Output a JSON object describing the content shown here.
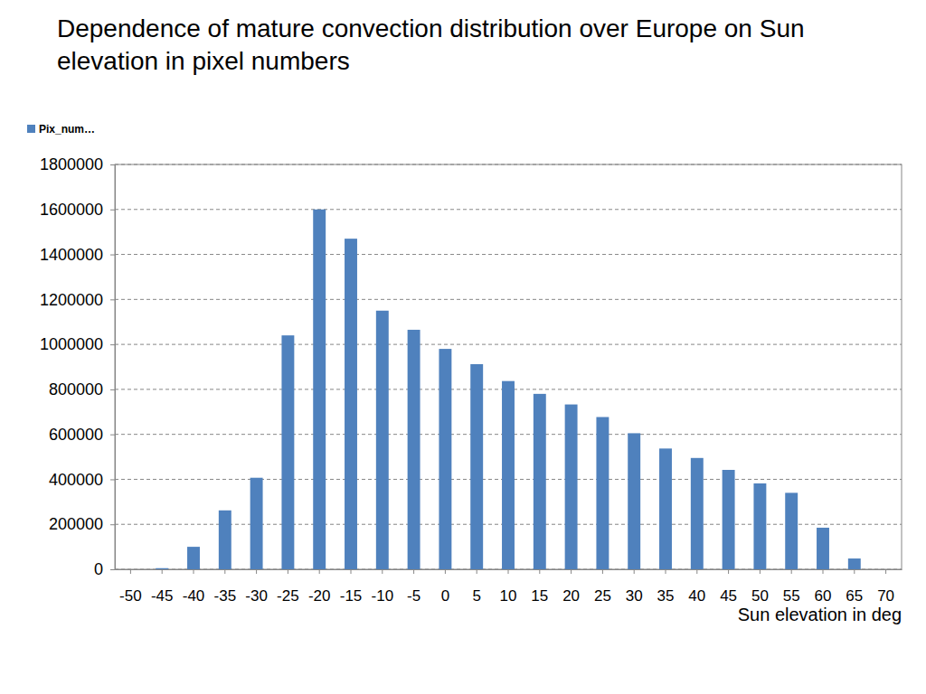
{
  "chart_data": {
    "type": "bar",
    "title": "Dependence of mature convection distribution over Europe on Sun elevation in pixel numbers",
    "x_label": "Sun elevation in deg",
    "categories": [
      "-50",
      "-45",
      "-40",
      "-35",
      "-30",
      "-25",
      "-20",
      "-15",
      "-10",
      "-5",
      "0",
      "5",
      "10",
      "15",
      "20",
      "25",
      "30",
      "35",
      "40",
      "45",
      "50",
      "55",
      "60",
      "65",
      "70"
    ],
    "series": [
      {
        "name": "Pix_num…",
        "color": "#4f81bd",
        "values": [
          0,
          5000,
          100000,
          262000,
          407000,
          1040000,
          1600000,
          1470000,
          1150000,
          1065000,
          980000,
          912000,
          837000,
          780000,
          733000,
          677000,
          605000,
          537000,
          495000,
          442000,
          382000,
          340000,
          185000,
          48000,
          0
        ]
      }
    ],
    "ylim": [
      0,
      1800000
    ],
    "yticks": [
      0,
      200000,
      400000,
      600000,
      800000,
      1000000,
      1200000,
      1400000,
      1600000,
      1800000
    ],
    "grid": true,
    "legend": "top-left"
  }
}
